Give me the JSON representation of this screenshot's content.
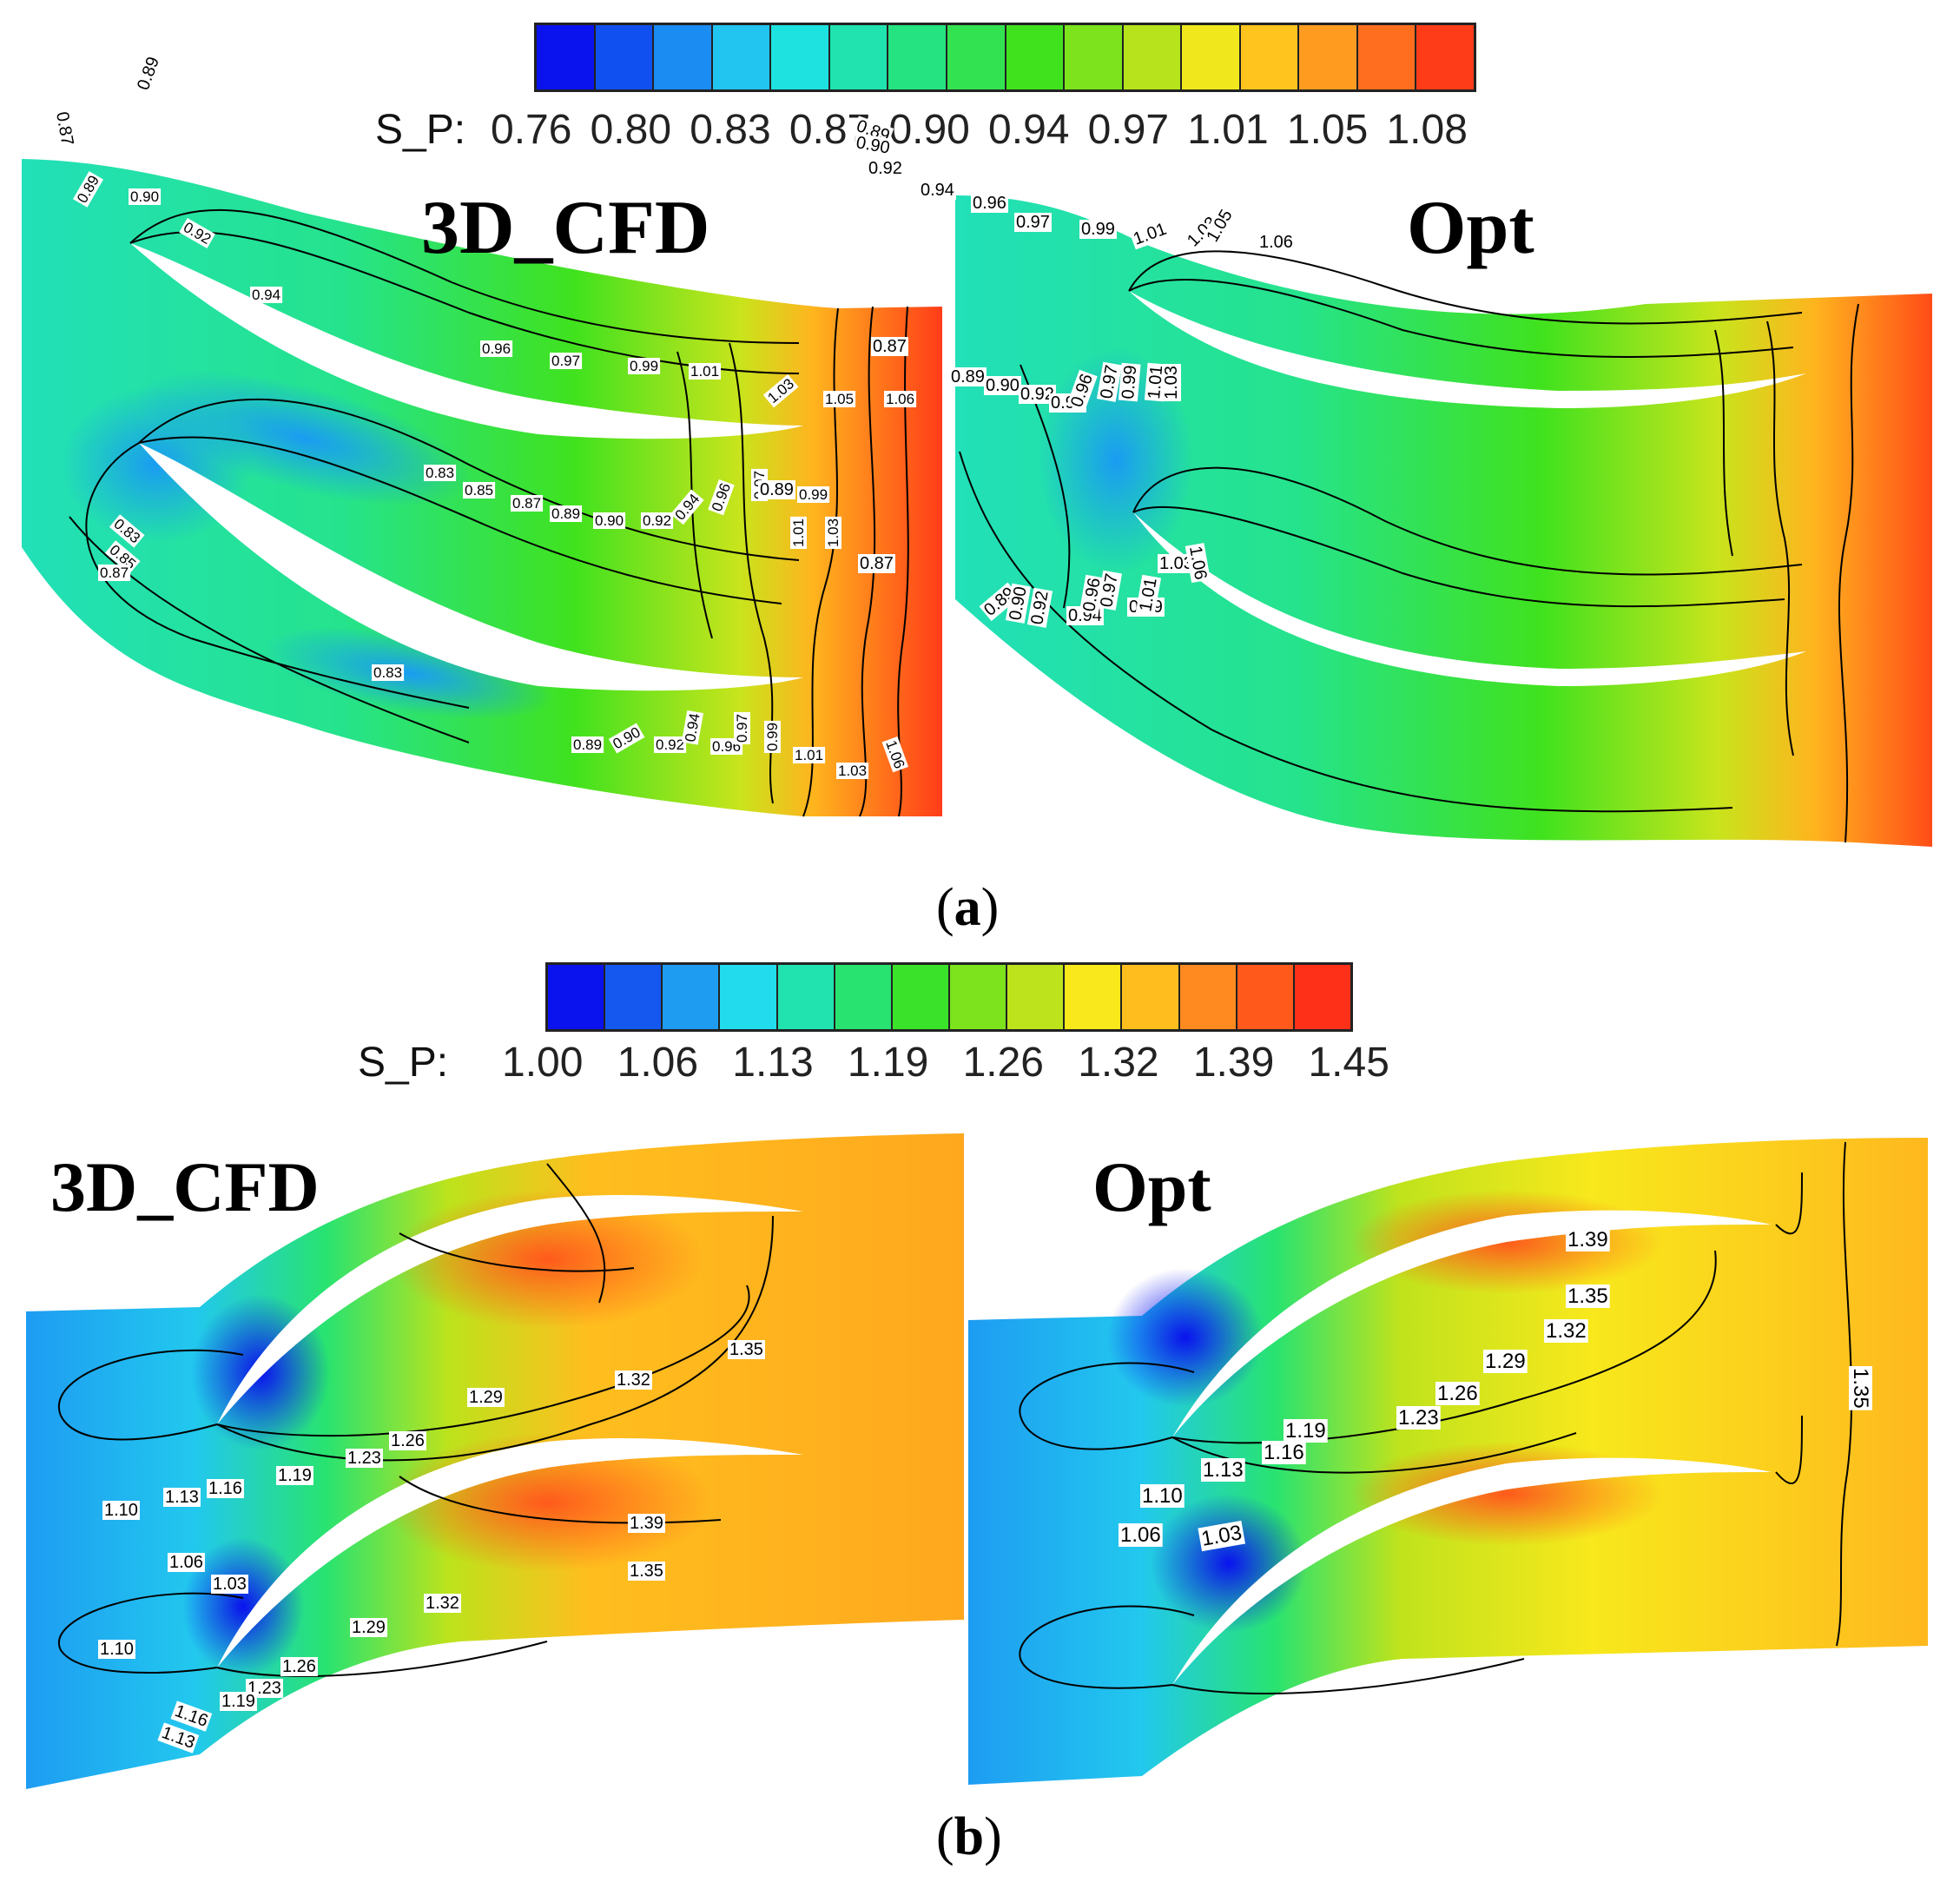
{
  "panel_a": {
    "legend_prefix": "S_P:",
    "legend_ticks": [
      "0.76",
      "0.80",
      "0.83",
      "0.87",
      "0.90",
      "0.94",
      "0.97",
      "1.01",
      "1.05",
      "1.08"
    ],
    "legend_colors": [
      "#0a12ee",
      "#1050f0",
      "#1a8cf2",
      "#22c4f0",
      "#1de2e0",
      "#20e3b0",
      "#25e380",
      "#33e250",
      "#40e21e",
      "#7ce31c",
      "#b6e31c",
      "#f0e81c",
      "#ffc41e",
      "#ff9c20",
      "#ff6e1e",
      "#ff3c18"
    ],
    "title_left": "3D_CFD",
    "title_right": "Opt",
    "caption": "(a)",
    "left_labels": [
      "0.89",
      "0.90",
      "0.92",
      "0.94",
      "0.96",
      "0.97",
      "0.99",
      "1.01",
      "1.03",
      "1.05",
      "1.06",
      "0.83",
      "0.85",
      "0.87",
      "0.89",
      "0.90",
      "0.92",
      "0.94",
      "0.96",
      "0.97",
      "0.99",
      "1.01",
      "1.03",
      "0.83",
      "0.85",
      "0.87",
      "0.83",
      "0.89",
      "0.90",
      "0.92",
      "0.94",
      "0.96",
      "0.97",
      "0.99",
      "1.01",
      "1.03",
      "1.06"
    ],
    "right_labels": [
      "0.87",
      "0.89",
      "0.89",
      "0.90",
      "0.92",
      "0.94",
      "0.96",
      "0.97",
      "0.99",
      "1.01",
      "1.03",
      "1.05",
      "1.06",
      "0.87",
      "0.89",
      "0.90",
      "0.92",
      "0.94",
      "0.96",
      "0.97",
      "0.99",
      "1.01",
      "1.03",
      "0.89",
      "0.87",
      "0.89",
      "0.90",
      "0.92",
      "0.94",
      "0.96",
      "0.97",
      "0.99",
      "1.01",
      "1.03",
      "1.06"
    ]
  },
  "panel_b": {
    "legend_prefix": "S_P:",
    "legend_ticks": [
      "1.00",
      "1.06",
      "1.13",
      "1.19",
      "1.26",
      "1.32",
      "1.39",
      "1.45"
    ],
    "legend_colors": [
      "#0a12ee",
      "#1458f0",
      "#1e9cf2",
      "#22dcee",
      "#20e3b0",
      "#28e370",
      "#3ae22a",
      "#7ce31c",
      "#bce31c",
      "#f8e81c",
      "#ffbe1e",
      "#ff8a20",
      "#ff5a1c",
      "#ff3018"
    ],
    "title_left": "3D_CFD",
    "title_right": "Opt",
    "caption": "(b)",
    "left_labels": [
      "1.35",
      "1.32",
      "1.29",
      "1.26",
      "1.23",
      "1.19",
      "1.16",
      "1.13",
      "1.10",
      "1.39",
      "1.35",
      "1.32",
      "1.29",
      "1.06",
      "1.03",
      "1.10",
      "1.26",
      "1.23",
      "1.19",
      "1.16",
      "1.13"
    ],
    "right_labels": [
      "1.39",
      "1.35",
      "1.32",
      "1.29",
      "1.26",
      "1.23",
      "1.19",
      "1.16",
      "1.13",
      "1.10",
      "1.06",
      "1.03",
      "1.35"
    ]
  }
}
